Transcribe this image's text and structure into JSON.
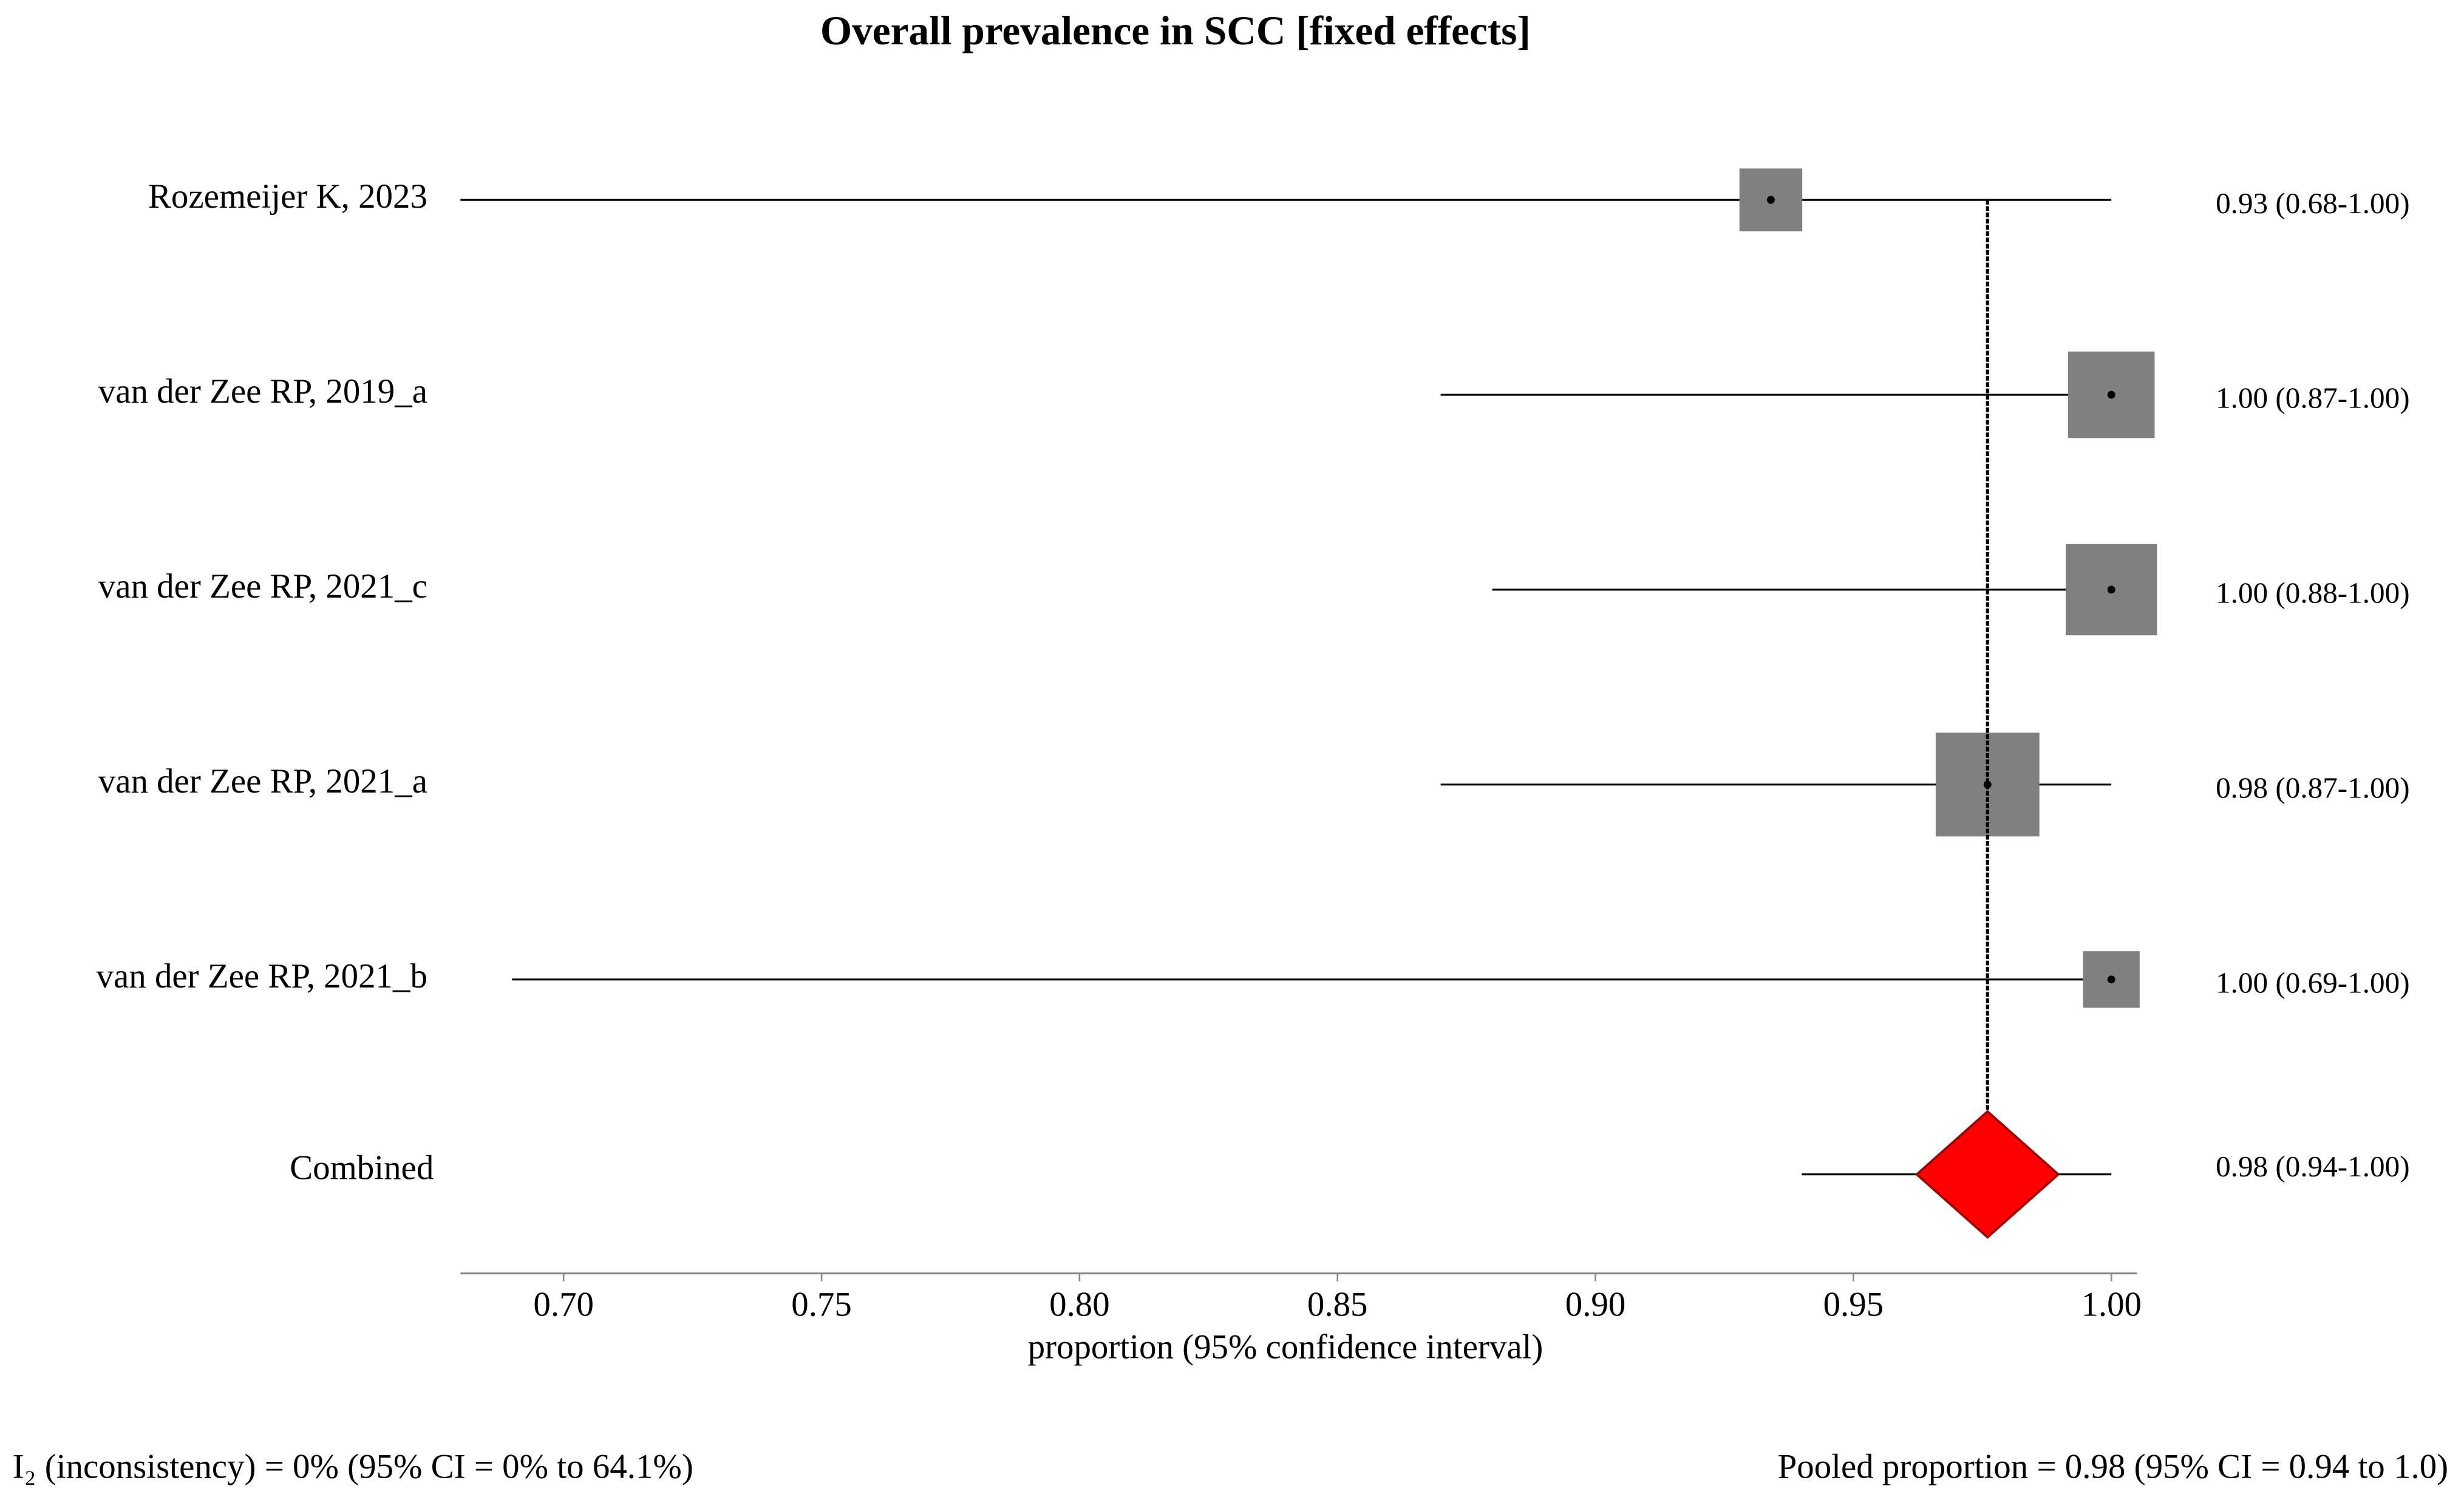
{
  "chart_data": {
    "type": "forest",
    "title": "Overall prevalence in SCC [fixed effects]",
    "categories": [
      "Rozemeijer K, 2023",
      "van der Zee RP, 2019_a",
      "van der Zee RP, 2021_c",
      "van der Zee RP, 2021_a",
      "van der Zee RP, 2021_b"
    ],
    "estimates": [
      0.934,
      1.0,
      1.0,
      0.976,
      1.0
    ],
    "ci_low": [
      0.68,
      0.87,
      0.88,
      0.87,
      0.69
    ],
    "ci_high": [
      1.0,
      1.0,
      1.0,
      1.0,
      1.0
    ],
    "weights": [
      11.7,
      22.2,
      24.7,
      31.9,
      9.5
    ],
    "value_labels": [
      "0.93 (0.68-1.00)",
      "1.00 (0.87-1.00)",
      "1.00 (0.88-1.00)",
      "0.98 (0.87-1.00)",
      "1.00 (0.69-1.00)"
    ],
    "box_color": "#808080",
    "combined": {
      "name": "Combined",
      "estimate": 0.976,
      "ci_low": 0.94,
      "ci_high": 1.0,
      "value_label": "0.98 (0.94-1.00)",
      "color": "#ff0000"
    },
    "xlabel": "proportion (95% confidence interval)",
    "xlim": [
      0.68,
      1.005
    ],
    "xticks": [
      {
        "value": 0.7,
        "label": "0.70"
      },
      {
        "value": 0.75,
        "label": "0.75"
      },
      {
        "value": 0.8,
        "label": "0.80"
      },
      {
        "value": 0.85,
        "label": "0.85"
      },
      {
        "value": 0.9,
        "label": "0.90"
      },
      {
        "value": 0.95,
        "label": "0.95"
      },
      {
        "value": 1.0,
        "label": "1.00"
      }
    ],
    "footer_left": "I₂ (inconsistency) = 0% (95% CI = 0% to 64.1%)",
    "footer_right": "Pooled proportion = 0.98 (95% CI = 0.94 to 1.0)"
  }
}
